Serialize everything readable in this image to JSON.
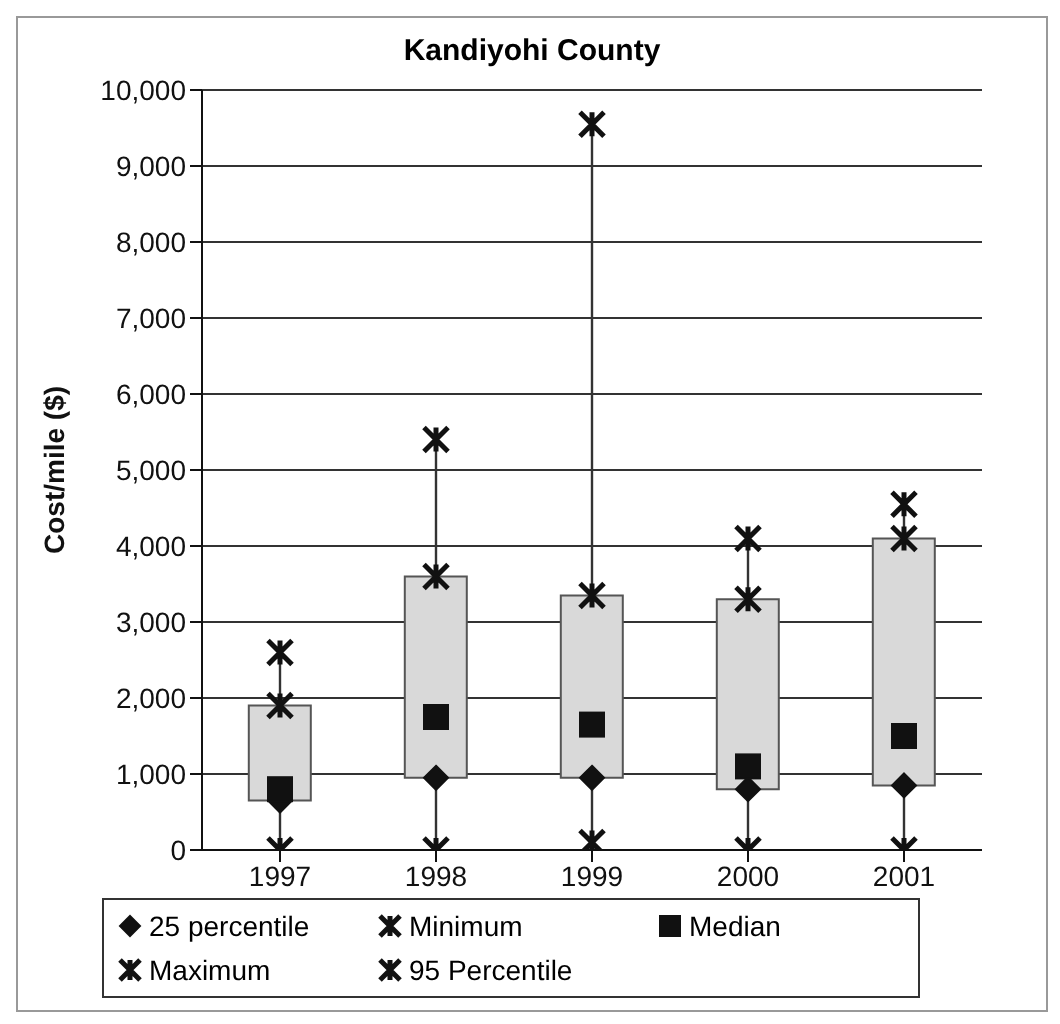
{
  "chart_data": {
    "type": "scatter",
    "title": "Kandiyohi County",
    "ylabel": "Cost/mile ($)",
    "categories": [
      "1997",
      "1998",
      "1999",
      "2000",
      "2001"
    ],
    "ylim": [
      0,
      10000
    ],
    "yticks": [
      {
        "value": 0,
        "label": "0"
      },
      {
        "value": 1000,
        "label": "1,000"
      },
      {
        "value": 2000,
        "label": "2,000"
      },
      {
        "value": 3000,
        "label": "3,000"
      },
      {
        "value": 4000,
        "label": "4,000"
      },
      {
        "value": 5000,
        "label": "5,000"
      },
      {
        "value": 6000,
        "label": "6,000"
      },
      {
        "value": 7000,
        "label": "7,000"
      },
      {
        "value": 8000,
        "label": "8,000"
      },
      {
        "value": 9000,
        "label": "9,000"
      },
      {
        "value": 10000,
        "label": "10,000"
      }
    ],
    "grid": "y",
    "legend": "bottom",
    "series": [
      {
        "type": "bar",
        "color": "#d9d9d9",
        "base": [
          650,
          950,
          950,
          800,
          850
        ],
        "values": [
          1250,
          2650,
          2400,
          2500,
          3250
        ]
      },
      {
        "name": "25 percentile",
        "color": "#111111",
        "marker": "diamond",
        "values": [
          650,
          950,
          950,
          800,
          850
        ]
      },
      {
        "name": "Minimum",
        "color": "#111111",
        "marker": "cross",
        "values": [
          0,
          0,
          100,
          0,
          0
        ]
      },
      {
        "name": "Median",
        "color": "#111111",
        "marker": "square",
        "values": [
          800,
          1750,
          1650,
          1100,
          1500
        ]
      },
      {
        "name": "Maximum",
        "color": "#111111",
        "marker": "cross",
        "values": [
          2600,
          5400,
          9550,
          4100,
          4550
        ]
      },
      {
        "name": "95 Percentile",
        "color": "#111111",
        "marker": "cross",
        "values": [
          1900,
          3600,
          3350,
          3300,
          4100
        ]
      }
    ]
  }
}
